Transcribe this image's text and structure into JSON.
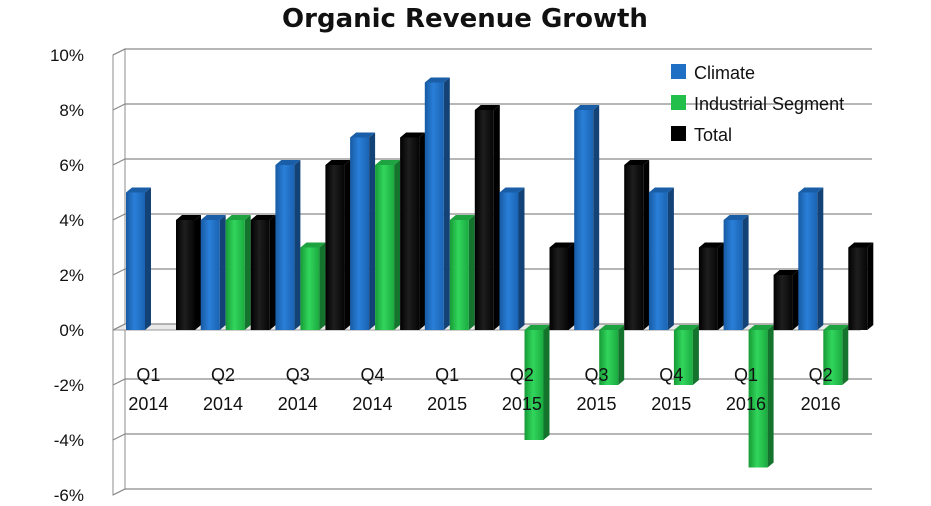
{
  "chart_data": {
    "type": "bar",
    "title": "Organic Revenue Growth",
    "categories": [
      [
        "Q1",
        "2014"
      ],
      [
        "Q2",
        "2014"
      ],
      [
        "Q3",
        "2014"
      ],
      [
        "Q4",
        "2014"
      ],
      [
        "Q1",
        "2015"
      ],
      [
        "Q2",
        "2015"
      ],
      [
        "Q3",
        "2015"
      ],
      [
        "Q4",
        "2015"
      ],
      [
        "Q1",
        "2016"
      ],
      [
        "Q2",
        "2016"
      ]
    ],
    "series": [
      {
        "name": "Climate",
        "color": "#1f6fc5",
        "values": [
          5,
          4,
          6,
          7,
          9,
          5,
          8,
          5,
          4,
          5
        ]
      },
      {
        "name": "Industrial Segment",
        "color": "#22c04a",
        "values": [
          0,
          4,
          3,
          6,
          4,
          -4,
          -2,
          -2,
          -5,
          -2
        ]
      },
      {
        "name": "Total",
        "color": "#000000",
        "values": [
          4,
          4,
          6,
          7,
          8,
          3,
          6,
          3,
          2,
          3
        ]
      }
    ],
    "ylim": [
      -6,
      10
    ],
    "yticks": [
      "-6%",
      "-4%",
      "-2%",
      "0%",
      "2%",
      "4%",
      "6%",
      "8%",
      "10%"
    ],
    "grid": true,
    "legend": "top-right"
  }
}
